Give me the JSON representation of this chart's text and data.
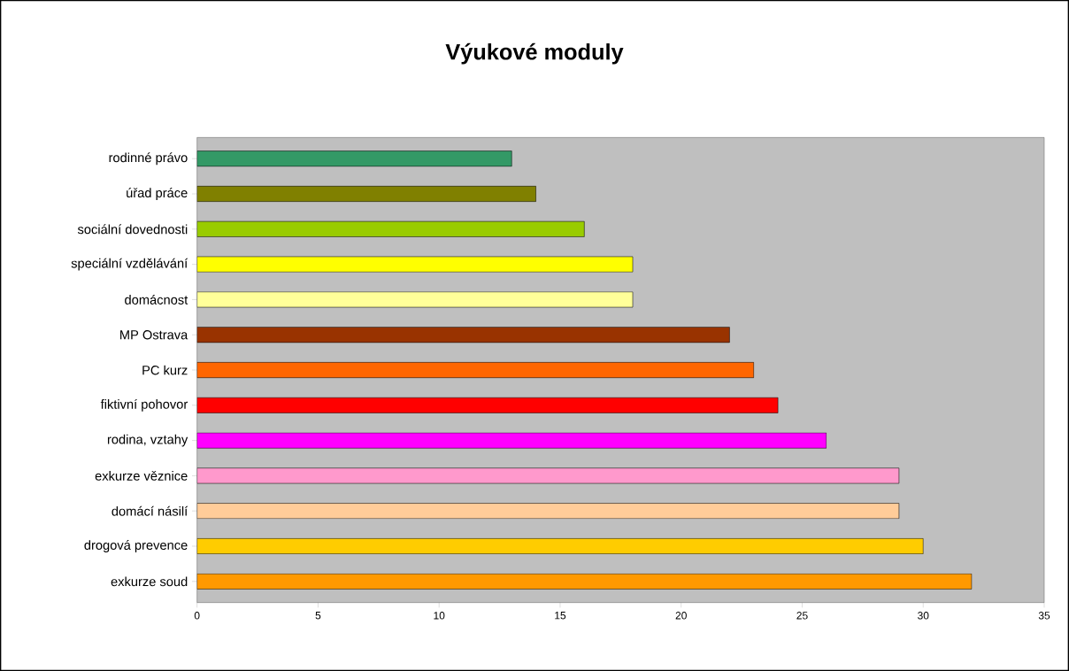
{
  "chart_data": {
    "type": "bar",
    "orientation": "horizontal",
    "title": "Výukové moduly",
    "categories": [
      "rodinné právo",
      "úřad práce",
      "sociální dovednosti",
      "speciální vzdělávání",
      "domácnost",
      "MP Ostrava",
      "PC kurz",
      "fiktivní pohovor",
      "rodina, vztahy",
      "exkurze věznice",
      "domácí násilí",
      "drogová prevence",
      "exkurze soud"
    ],
    "values": [
      13,
      14,
      16,
      18,
      18,
      22,
      23,
      24,
      26,
      29,
      29,
      30,
      32
    ],
    "colors": [
      "#339966",
      "#808000",
      "#99cc00",
      "#ffff00",
      "#ffff99",
      "#993300",
      "#ff6600",
      "#ff0000",
      "#ff00ff",
      "#ff99cc",
      "#ffcc99",
      "#ffcc00",
      "#ff9900"
    ],
    "xlim": [
      0,
      35
    ],
    "xticks": [
      0,
      5,
      10,
      15,
      20,
      25,
      30,
      35
    ],
    "grid": false
  }
}
